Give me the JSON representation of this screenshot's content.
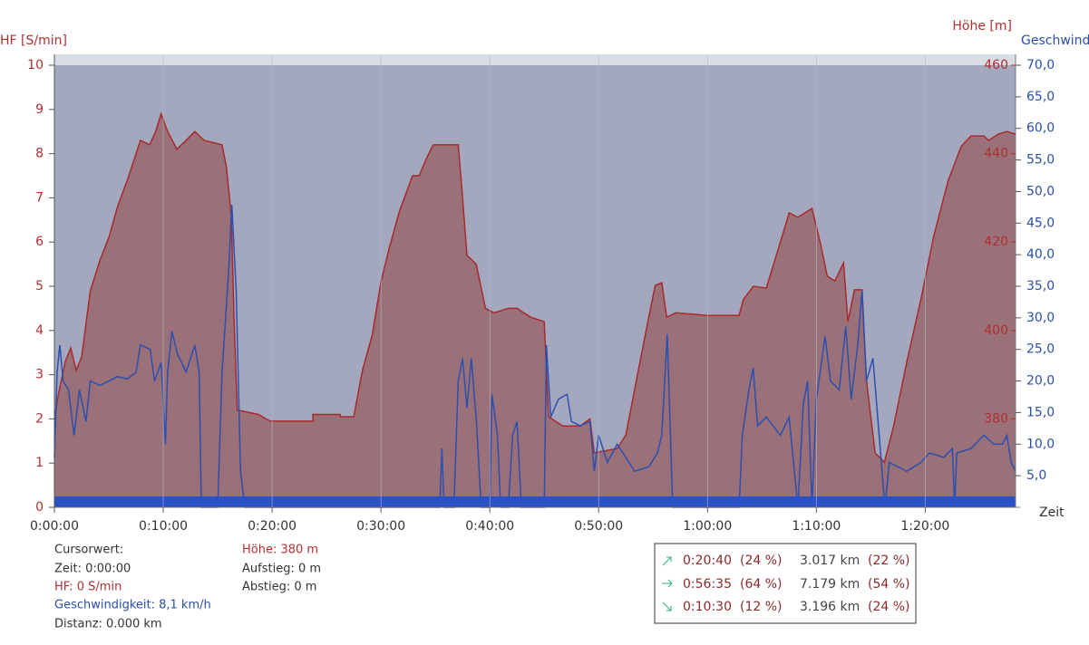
{
  "chart_data": {
    "type": "line",
    "ylabel": "HF [S/min]",
    "y2label": "Höhe  [m]",
    "y3label": "Geschwindigkeit",
    "xlabel": "Zeit",
    "xlim": [
      0,
      88.3
    ],
    "xticks": [
      {
        "value": 0,
        "label": "0:00:00"
      },
      {
        "value": 10,
        "label": "0:10:00"
      },
      {
        "value": 20,
        "label": "0:20:00"
      },
      {
        "value": 30,
        "label": "0:30:00"
      },
      {
        "value": 40,
        "label": "0:40:00"
      },
      {
        "value": 50,
        "label": "0:50:00"
      },
      {
        "value": 60,
        "label": "1:00:00"
      },
      {
        "value": 70,
        "label": "1:10:00"
      },
      {
        "value": 80,
        "label": "1:20:00"
      }
    ],
    "ylim": [
      0,
      10
    ],
    "yticks": [
      0,
      1,
      2,
      3,
      4,
      5,
      6,
      7,
      8,
      9,
      10
    ],
    "y2lim": [
      360,
      460
    ],
    "y2ticks": [
      380,
      400,
      420,
      440,
      460
    ],
    "y3lim": [
      0,
      70
    ],
    "y3ticks": [
      {
        "value": 5,
        "label": "5,0"
      },
      {
        "value": 10,
        "label": "10,0"
      },
      {
        "value": 15,
        "label": "15,0"
      },
      {
        "value": 20,
        "label": "20,0"
      },
      {
        "value": 25,
        "label": "25,0"
      },
      {
        "value": 30,
        "label": "30,0"
      },
      {
        "value": 35,
        "label": "35,0"
      },
      {
        "value": 40,
        "label": "40,0"
      },
      {
        "value": 45,
        "label": "45,0"
      },
      {
        "value": 50,
        "label": "50,0"
      },
      {
        "value": 55,
        "label": "55,0"
      },
      {
        "value": 60,
        "label": "60,0"
      },
      {
        "value": 65,
        "label": "65,0"
      },
      {
        "value": 70,
        "label": "70,0"
      }
    ],
    "series": [
      {
        "type": "area",
        "axis": "y2",
        "color": "#a82a2a",
        "fill": "#9a7079",
        "x": [
          0,
          0.4,
          1,
          1.5,
          2,
          2.5,
          3.3,
          4.2,
          5,
          5.8,
          6.7,
          7.5,
          7.9,
          8.75,
          9.3,
          9.8,
          10.4,
          11.25,
          12.1,
          12.9,
          13.75,
          15.4,
          15.8,
          16.25,
          16.5,
          16.8,
          18.75,
          19.8,
          23.75,
          23.75,
          26.25,
          26.25,
          27.5,
          28.3,
          29.2,
          30,
          30.8,
          31.7,
          32.9,
          33.5,
          34.2,
          34.8,
          37.1,
          37.5,
          37.9,
          38.75,
          39.6,
          40.4,
          41.7,
          42.5,
          43.75,
          45,
          45.4,
          46.7,
          48.3,
          49.2,
          49.6,
          51.7,
          52.5,
          53.3,
          54.6,
          55.2,
          55.8,
          56.25,
          57.1,
          60,
          62.9,
          63.3,
          64.2,
          65.4,
          66.25,
          67.5,
          68.3,
          69.6,
          70.4,
          71,
          71.7,
          72.5,
          72.9,
          73.5,
          74.2,
          74.6,
          75.4,
          76.25,
          77.1,
          78.3,
          79.6,
          80.8,
          82.1,
          83.3,
          84.2,
          85.4,
          85.8,
          86.7,
          87.5,
          88.3
        ],
        "values": [
          380,
          386,
          393,
          396,
          391,
          394,
          409,
          416,
          421,
          428,
          434,
          440,
          443,
          442,
          445,
          449,
          445,
          441,
          443,
          445,
          443,
          442,
          437,
          426,
          403,
          382,
          381,
          379.5,
          379.5,
          381,
          381,
          380.5,
          380.5,
          391,
          399,
          411,
          419,
          427,
          435,
          435,
          439,
          442,
          442,
          430,
          417,
          415,
          405,
          404,
          405,
          405,
          403,
          402,
          380.5,
          378.4,
          378.4,
          380,
          372.3,
          373.3,
          376.4,
          386.6,
          403,
          410.2,
          410.8,
          403,
          404,
          403.4,
          403.4,
          407,
          410,
          409.6,
          416.4,
          426.6,
          425.6,
          427.6,
          419.4,
          412.3,
          411.2,
          415.3,
          402,
          409.2,
          409.2,
          388.7,
          372.3,
          370.2,
          378.4,
          392.8,
          407,
          421.5,
          433.8,
          441.6,
          444,
          444,
          443,
          444.4,
          445,
          444.4
        ]
      },
      {
        "type": "line",
        "axis": "y3",
        "color": "#2c50b0",
        "x": [
          0,
          0.25,
          0.5,
          0.8,
          1.3,
          1.8,
          2.3,
          2.9,
          3.3,
          4.2,
          5,
          5.8,
          6.7,
          7.5,
          7.9,
          8.8,
          9.2,
          9.8,
          10.2,
          10.4,
          10.8,
          11.3,
          12.1,
          12.9,
          13.3,
          13.5,
          15,
          15.4,
          16,
          16.3,
          16.7,
          17.1,
          17.5,
          17.9,
          35.4,
          35.6,
          35.8,
          36.7,
          37.1,
          37.5,
          37.9,
          38.3,
          38.8,
          39.2,
          40,
          40.2,
          40.7,
          41,
          41.7,
          42.1,
          42.5,
          42.9,
          45,
          45.2,
          45.6,
          46.3,
          47.1,
          47.5,
          48.3,
          49.2,
          49.6,
          50,
          50.8,
          51.7,
          52.5,
          53.3,
          54.6,
          55.4,
          55.8,
          56.3,
          56.7,
          56.8,
          62.9,
          63.2,
          63.8,
          64.2,
          64.6,
          65.4,
          66.7,
          67.5,
          68.3,
          68.8,
          69.2,
          69.6,
          70,
          70.8,
          71.3,
          72.1,
          72.7,
          73.2,
          73.8,
          74.2,
          74.6,
          75.2,
          75.7,
          76.3,
          76.7,
          77.5,
          78.3,
          79.6,
          80.4,
          81.7,
          82.5,
          82.7,
          82.9,
          84.2,
          85.4,
          86.3,
          87.1,
          87.5,
          87.9,
          88.3
        ],
        "values": [
          7.9,
          21.4,
          25.7,
          20,
          18.6,
          11.4,
          18.6,
          13.6,
          20,
          19.3,
          20,
          20.7,
          20.3,
          21.4,
          25.7,
          25,
          20,
          22.9,
          10,
          21.4,
          27.9,
          24.3,
          21.4,
          25.7,
          21.4,
          0,
          0,
          21.4,
          37.1,
          47.9,
          34.3,
          5.7,
          0,
          0,
          0,
          9.3,
          0,
          0,
          20,
          23.6,
          15.7,
          23.6,
          12.9,
          0,
          0,
          17.9,
          11.4,
          0,
          0,
          11.4,
          13.6,
          0,
          0,
          25.7,
          14.3,
          17.1,
          17.9,
          13.6,
          12.9,
          13.6,
          5.7,
          11.4,
          7.1,
          10,
          7.9,
          5.7,
          6.4,
          8.6,
          11.4,
          27.4,
          5.7,
          0,
          0,
          11.4,
          18.6,
          22.1,
          12.9,
          14.3,
          11.4,
          14.3,
          0,
          16.4,
          20,
          0,
          17.1,
          27.1,
          20,
          18.6,
          28.6,
          17.1,
          25.7,
          34.3,
          20,
          23.6,
          12.9,
          0,
          7.1,
          6.4,
          5.7,
          7.1,
          8.6,
          7.9,
          9.3,
          0,
          8.6,
          9.3,
          11.4,
          10,
          10,
          11.4,
          7.1,
          5.7
        ]
      },
      {
        "type": "band",
        "axis": "y",
        "color": "#2b52c4",
        "x": [
          0,
          88.3
        ],
        "values": [
          0,
          0
        ]
      }
    ]
  },
  "cursor": {
    "heading": "Cursorwert:",
    "time": "Zeit: 0:00:00",
    "hf": "HF: 0 S/min",
    "speed": "Geschwindigkeit: 8,1 km/h",
    "distance": "Distanz: 0.000 km",
    "elevation": "Höhe:  380 m",
    "ascent": "Aufstieg: 0 m",
    "descent": "Abstieg: 0 m"
  },
  "stats": {
    "rows": [
      [
        "0:20:40",
        "(24 %)",
        "3.017 km",
        "(22 %)"
      ],
      [
        "0:56:35",
        "(64 %)",
        "7.179 km",
        "(54 %)"
      ],
      [
        "0:10:30",
        "(12 %)",
        "3.196 km",
        "(24 %)"
      ]
    ]
  }
}
